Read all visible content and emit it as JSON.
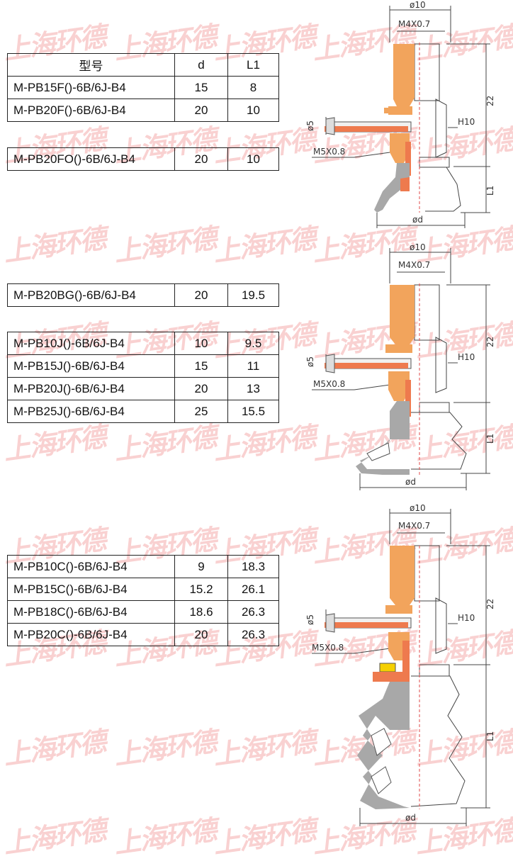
{
  "watermark": "上海环德",
  "table1": {
    "headers": {
      "model": "型号",
      "d": "d",
      "l1": "L1"
    },
    "rows": [
      {
        "model": "M-PB15F()-6B/6J-B4",
        "d": "15",
        "l1": "8"
      },
      {
        "model": "M-PB20F()-6B/6J-B4",
        "d": "20",
        "l1": "10"
      }
    ]
  },
  "table2": {
    "rows": [
      {
        "model": "M-PB20FO()-6B/6J-B4",
        "d": "20",
        "l1": "10"
      }
    ]
  },
  "table3": {
    "rows": [
      {
        "model": "M-PB20BG()-6B/6J-B4",
        "d": "20",
        "l1": "19.5"
      }
    ]
  },
  "table4": {
    "rows": [
      {
        "model": "M-PB10J()-6B/6J-B4",
        "d": "10",
        "l1": "9.5"
      },
      {
        "model": "M-PB15J()-6B/6J-B4",
        "d": "15",
        "l1": "11"
      },
      {
        "model": "M-PB20J()-6B/6J-B4",
        "d": "20",
        "l1": "13"
      },
      {
        "model": "M-PB25J()-6B/6J-B4",
        "d": "25",
        "l1": "15.5"
      }
    ]
  },
  "table5": {
    "rows": [
      {
        "model": "M-PB10C()-6B/6J-B4",
        "d": "9",
        "l1": "18.3"
      },
      {
        "model": "M-PB15C()-6B/6J-B4",
        "d": "15.2",
        "l1": "26.1"
      },
      {
        "model": "M-PB18C()-6B/6J-B4",
        "d": "18.6",
        "l1": "26.3"
      },
      {
        "model": "M-PB20C()-6B/6J-B4",
        "d": "20",
        "l1": "26.3"
      }
    ]
  },
  "drawings": {
    "flat": {
      "od10": "ø10",
      "thread_top": "M4X0.7",
      "od5": "ø5",
      "hex": "H10",
      "thread_side": "M5X0.8",
      "height": "22",
      "l1": "L1",
      "od": "ød"
    },
    "bellows_j": {
      "od10": "ø10",
      "thread_top": "M4X0.7",
      "od5": "ø5",
      "hex": "H10",
      "thread_side": "M5X0.8",
      "height": "22",
      "l1": "L1",
      "od": "ød"
    },
    "bellows_c": {
      "od10": "ø10",
      "thread_top": "M4X0.7",
      "od5": "ø5",
      "hex": "H10",
      "thread_side": "M5X0.8",
      "height": "22",
      "l1": "L1",
      "od": "ød"
    }
  },
  "colors": {
    "orange": "#f2a45c",
    "red_orange": "#ee7a4e",
    "gray": "#a8a8a8",
    "yellow": "#f5d000",
    "dim_red": "#e04a4a"
  }
}
